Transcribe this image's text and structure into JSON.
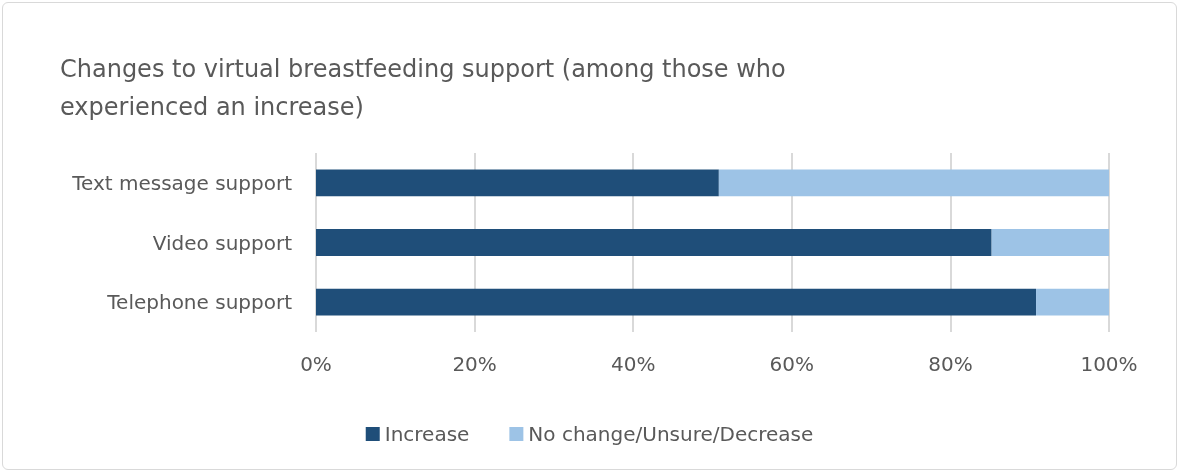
{
  "chart_data": {
    "type": "bar",
    "orientation": "horizontal",
    "stacked": true,
    "title": "Changes to virtual breastfeeding support (among those who\nexperienced an increase)",
    "categories": [
      "Text message support",
      "Video support",
      "Telephone support"
    ],
    "series": [
      {
        "name": "Increase",
        "color": "#1f4e79",
        "values": [
          50.8,
          85.2,
          90.8
        ]
      },
      {
        "name": "No change/Unsure/Decrease",
        "color": "#9dc3e6",
        "values": [
          49.2,
          14.8,
          9.2
        ]
      }
    ],
    "xlim": [
      0,
      100
    ],
    "xticks": [
      {
        "value": 0,
        "label": "0%"
      },
      {
        "value": 20,
        "label": "20%"
      },
      {
        "value": 40,
        "label": "40%"
      },
      {
        "value": 60,
        "label": "60%"
      },
      {
        "value": 80,
        "label": "80%"
      },
      {
        "value": 100,
        "label": "100%"
      }
    ],
    "grid": "x",
    "legend": "bottom"
  }
}
